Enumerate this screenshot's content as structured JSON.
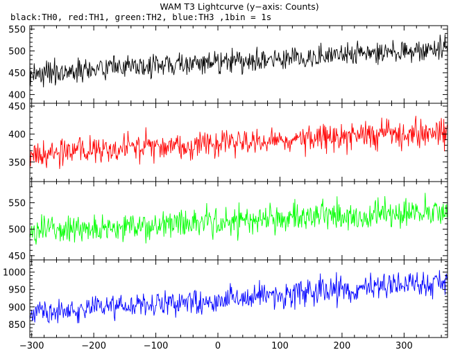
{
  "chart_data": {
    "type": "line",
    "title": "WAM T3 Lightcurve (y−axis: Counts)",
    "subtitle": "black:TH0, red:TH1, green:TH2, blue:TH3 ,1bin = 1s",
    "xlabel": "",
    "ylabel": "",
    "xlim": [
      -303,
      370
    ],
    "bin_width": 1,
    "x_ticks": [
      -300,
      -200,
      -100,
      0,
      100,
      200,
      300
    ],
    "x_tick_labels": [
      "−300",
      "−200",
      "−100",
      "0",
      "100",
      "200",
      "300"
    ],
    "grid": false,
    "panels": [
      {
        "series_name": "TH0",
        "color": "#000000",
        "ylim": [
          380,
          558
        ],
        "y_ticks": [
          400,
          450,
          500,
          550
        ],
        "trend_start": 448,
        "trend_end": 505,
        "noise_amplitude": 22
      },
      {
        "series_name": "TH1",
        "color": "#ff0000",
        "ylim": [
          315,
          455
        ],
        "y_ticks": [
          350,
          400,
          450
        ],
        "trend_start": 363,
        "trend_end": 405,
        "noise_amplitude": 20
      },
      {
        "series_name": "TH2",
        "color": "#00ff00",
        "ylim": [
          442,
          590
        ],
        "y_ticks": [
          450,
          500,
          550
        ],
        "trend_start": 497,
        "trend_end": 535,
        "noise_amplitude": 22
      },
      {
        "series_name": "TH3",
        "color": "#0000ff",
        "ylim": [
          812,
          1035
        ],
        "y_ticks": [
          850,
          900,
          950,
          1000
        ],
        "trend_start": 880,
        "trend_end": 975,
        "noise_amplitude": 30
      }
    ]
  }
}
